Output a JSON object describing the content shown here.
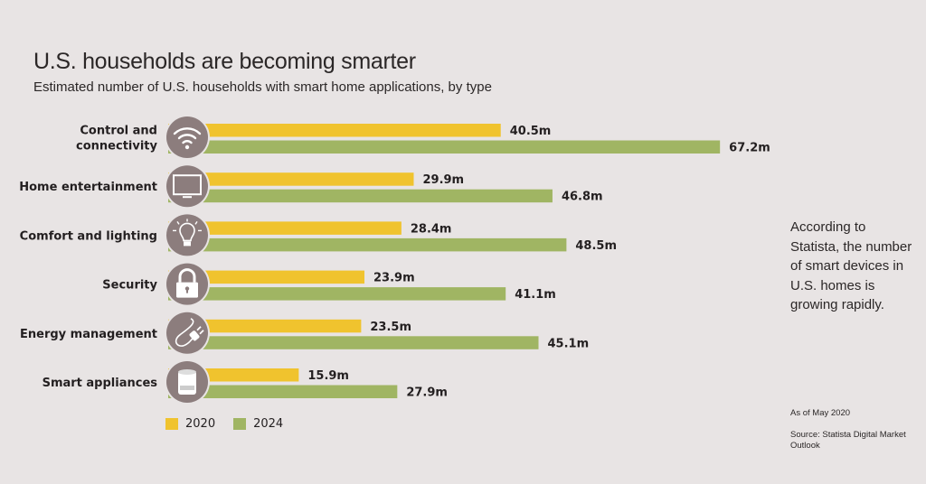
{
  "chart_data": {
    "type": "bar",
    "orientation": "horizontal",
    "title": "U.S. households are becoming smarter",
    "subtitle": "Estimated number of U.S. households with smart home applications, by type",
    "categories": [
      {
        "label": [
          "Control and",
          "connectivity"
        ],
        "icon": "wifi-icon"
      },
      {
        "label": [
          "Home entertainment"
        ],
        "icon": "tv-icon"
      },
      {
        "label": [
          "Comfort and lighting"
        ],
        "icon": "lightbulb-icon"
      },
      {
        "label": [
          "Security"
        ],
        "icon": "lock-icon"
      },
      {
        "label": [
          "Energy management"
        ],
        "icon": "plug-icon"
      },
      {
        "label": [
          "Smart appliances"
        ],
        "icon": "appliance-icon"
      }
    ],
    "series": [
      {
        "name": "2020",
        "color": "#f0c32e",
        "values": [
          40.5,
          29.9,
          28.4,
          23.9,
          23.5,
          15.9
        ],
        "labels": [
          "40.5m",
          "29.9m",
          "28.4m",
          "23.9m",
          "23.5m",
          "15.9m"
        ]
      },
      {
        "name": "2024",
        "color": "#a0b563",
        "values": [
          67.2,
          46.8,
          48.5,
          41.1,
          45.1,
          27.9
        ],
        "labels": [
          "67.2m",
          "46.8m",
          "48.5m",
          "41.1m",
          "45.1m",
          "27.9m"
        ]
      }
    ],
    "unit": "million households",
    "xlim": [
      0,
      70
    ],
    "grid": false,
    "legend_position": "bottom-left"
  },
  "side_note": "According to Statista, the number of smart devices in U.S. homes is growing rapidly.",
  "as_of": "As of May 2020",
  "source": "Source: Statista Digital Market Outlook",
  "colors": {
    "background": "#e8e4e4",
    "icon_circle": "#8c7d7d",
    "text": "#231f20"
  }
}
